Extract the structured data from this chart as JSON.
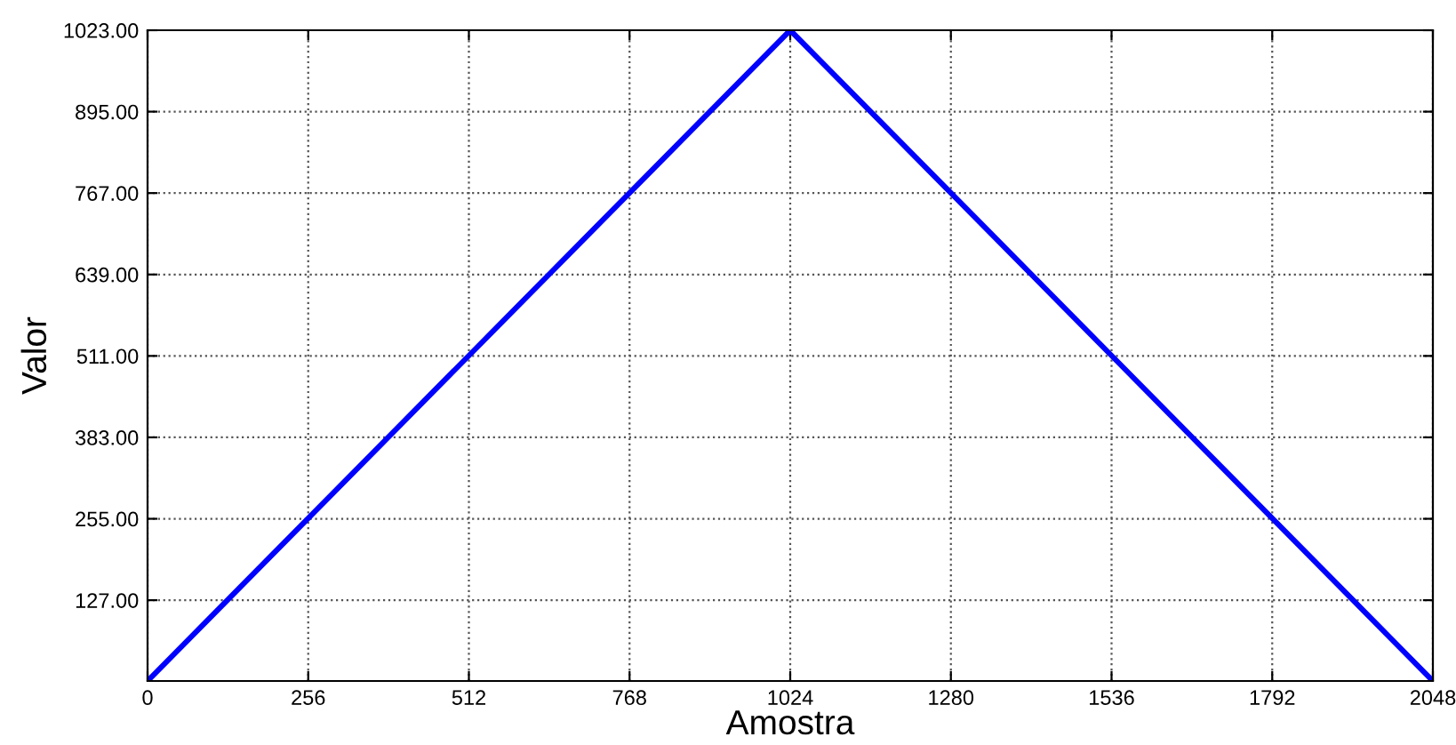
{
  "chart_data": {
    "type": "line",
    "xlabel": "Amostra",
    "ylabel": "Valor",
    "x": [
      0,
      1024,
      2048
    ],
    "series": [
      {
        "color": "#0000ff",
        "values": [
          0,
          1023,
          0
        ]
      }
    ],
    "xlim": [
      0,
      2048
    ],
    "xticks": [
      0,
      256,
      512,
      768,
      1024,
      1280,
      1536,
      1792,
      2048
    ],
    "ylim": [
      0,
      1023
    ],
    "yticks": [
      {
        "value": 127,
        "label": "127.00"
      },
      {
        "value": 255,
        "label": "255.00"
      },
      {
        "value": 383,
        "label": "383.00"
      },
      {
        "value": 511,
        "label": "511.00"
      },
      {
        "value": 639,
        "label": "639.00"
      },
      {
        "value": 767,
        "label": "767.00"
      },
      {
        "value": 895,
        "label": "895.00"
      },
      {
        "value": 1023,
        "label": "1023.00"
      }
    ],
    "grid": true,
    "marker": "none",
    "line_style": "solid",
    "legend": false
  }
}
